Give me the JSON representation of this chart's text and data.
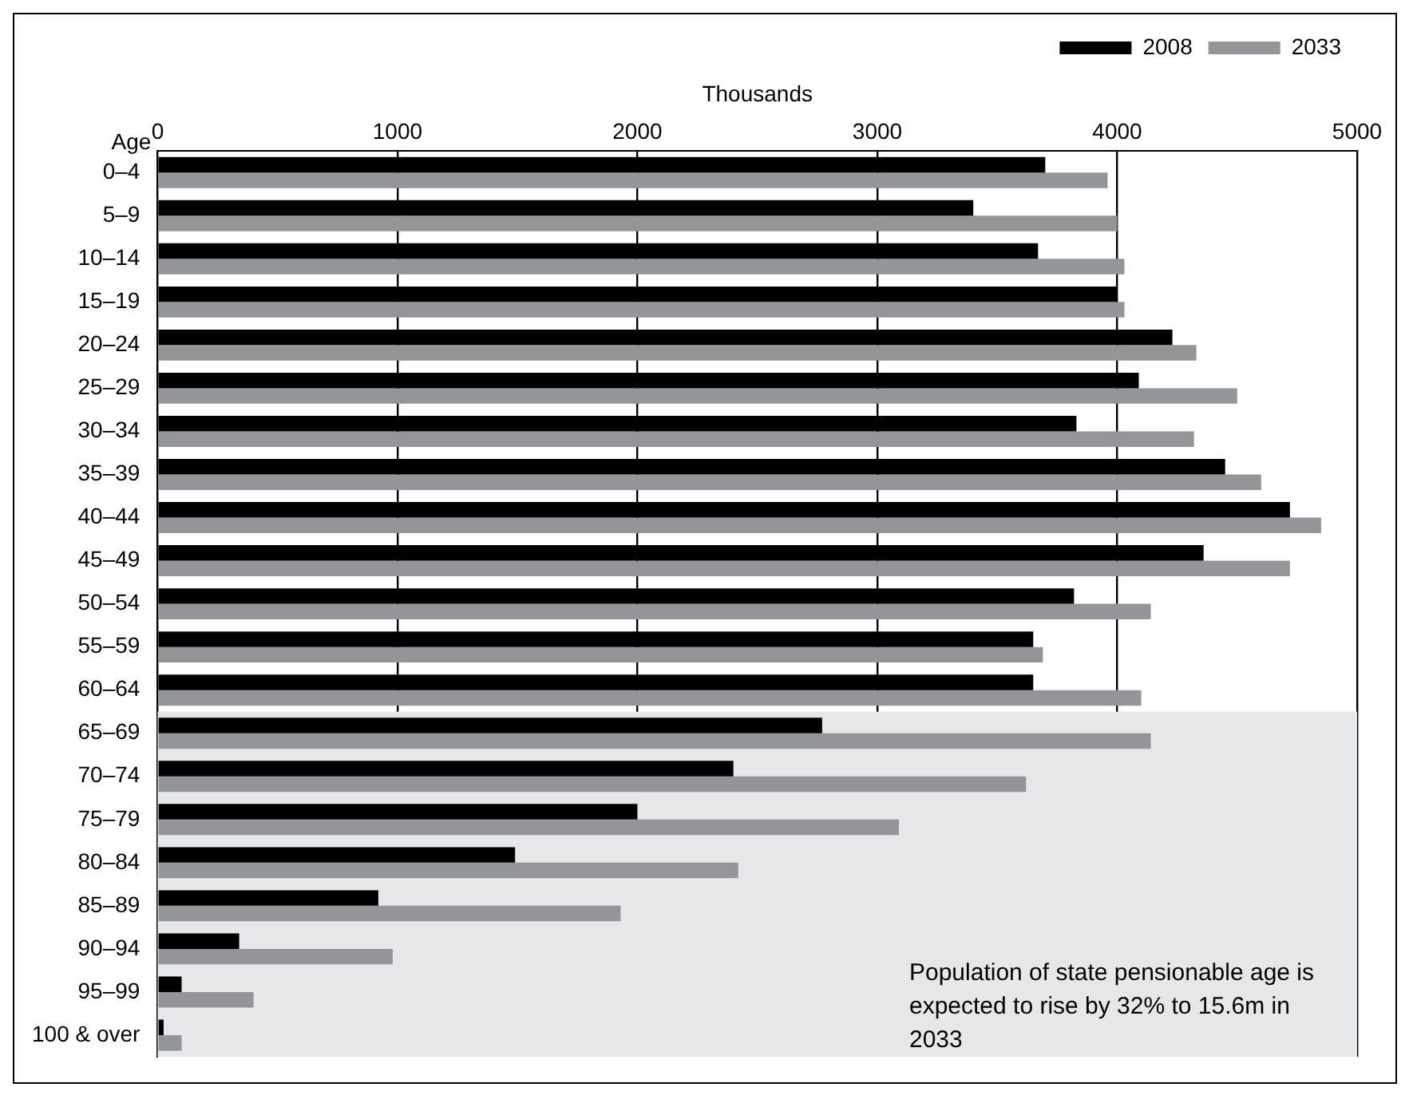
{
  "chart_data": {
    "type": "bar",
    "orientation": "horizontal",
    "xlabel": "Thousands",
    "ylabel": "Age",
    "categories": [
      "0–4",
      "5–9",
      "10–14",
      "15–19",
      "20–24",
      "25–29",
      "30–34",
      "35–39",
      "40–44",
      "45–49",
      "50–54",
      "55–59",
      "60–64",
      "65–69",
      "70–74",
      "75–79",
      "80–84",
      "85–89",
      "90–94",
      "95–99",
      "100 & over"
    ],
    "series": [
      {
        "name": "2008",
        "color": "#000000",
        "values": [
          3700,
          3400,
          3670,
          4000,
          4230,
          4090,
          3830,
          4450,
          4720,
          4360,
          3820,
          3650,
          3650,
          2770,
          2400,
          2000,
          1490,
          920,
          340,
          100,
          25
        ]
      },
      {
        "name": "2033",
        "color": "#939598",
        "values": [
          3960,
          4000,
          4030,
          4030,
          4330,
          4500,
          4320,
          4600,
          4850,
          4720,
          4140,
          3690,
          4100,
          4140,
          3620,
          3090,
          2420,
          1930,
          980,
          400,
          100
        ]
      }
    ],
    "xlim": [
      0,
      5000
    ],
    "xticks": [
      0,
      1000,
      2000,
      3000,
      4000,
      5000
    ],
    "grid": "x",
    "legend": "top right",
    "bands": [
      {
        "axis": "y",
        "from": "65–69",
        "to": "100 & over",
        "color": "#e6e7e8",
        "label": "Population of state pensionable age is expected to rise by 32% to 15.6m in 2033"
      }
    ]
  }
}
